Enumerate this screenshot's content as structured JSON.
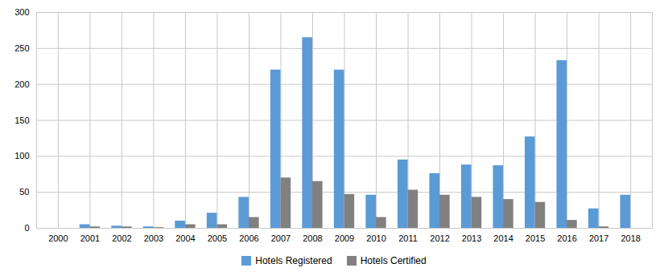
{
  "chart_data": {
    "type": "bar",
    "categories": [
      "2000",
      "2001",
      "2002",
      "2003",
      "2004",
      "2005",
      "2006",
      "2007",
      "2008",
      "2009",
      "2010",
      "2011",
      "2012",
      "2013",
      "2014",
      "2015",
      "2016",
      "2017",
      "2018"
    ],
    "series": [
      {
        "name": "Hotels Registered",
        "color": "#5B9BD5",
        "values": [
          0,
          5,
          3,
          2,
          10,
          21,
          43,
          220,
          265,
          220,
          46,
          95,
          76,
          88,
          87,
          127,
          233,
          27,
          46
        ]
      },
      {
        "name": "Hotels Certified",
        "color": "#808080",
        "values": [
          0,
          2,
          2,
          1,
          5,
          5,
          15,
          70,
          65,
          47,
          15,
          53,
          46,
          43,
          40,
          36,
          11,
          2,
          0
        ]
      }
    ],
    "ylim": [
      0,
      300
    ],
    "yticks": [
      0,
      50,
      100,
      150,
      200,
      250,
      300
    ],
    "grid": true,
    "legend": "bottom"
  }
}
